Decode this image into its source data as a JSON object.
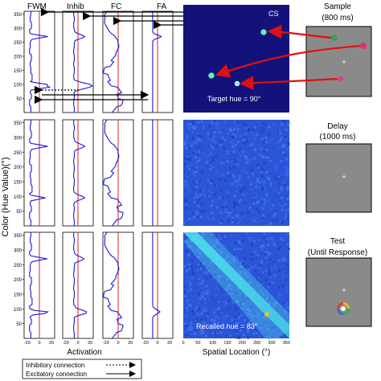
{
  "column_headers": [
    "FWM",
    "Inhib",
    "FC",
    "FA"
  ],
  "y_axis_label": "Color (Hue Value)(°)",
  "y_ticks": [
    50,
    100,
    150,
    200,
    250,
    300,
    350
  ],
  "x_ticks": [
    -20,
    0,
    20
  ],
  "x_axis_label": "Activation",
  "spatial_x_ticks": [
    0,
    50,
    100,
    150,
    200,
    250,
    300,
    350
  ],
  "spatial_x_label": "Spatial Location (°)",
  "field_labels": {
    "cs": "CS",
    "target": "Target hue = 90°",
    "recalled": "Recalled hue = 83°"
  },
  "legend": {
    "inhibitory": "Inhibitory connection",
    "excitatory": "Excitatory connection"
  },
  "stages": [
    {
      "title": "Sample",
      "subtitle": "(800 ms)"
    },
    {
      "title": "Delay",
      "subtitle": "(1000 ms)"
    },
    {
      "title": "Test",
      "subtitle": "(Until Response)"
    }
  ],
  "fixation": "+",
  "colors": {
    "trace": "#1a1acc",
    "threshold": "#e02020",
    "field_background": "#12127a",
    "noise_background": "#2a55d8",
    "ridge": "#3fd8e8",
    "display_gray": "#8a8a8a",
    "stimulus_green": "#3e9e5e",
    "stimulus_pink": "#e0306e",
    "stimulus_magenta": "#e03a9a",
    "arrow_red": "#e01010"
  }
}
